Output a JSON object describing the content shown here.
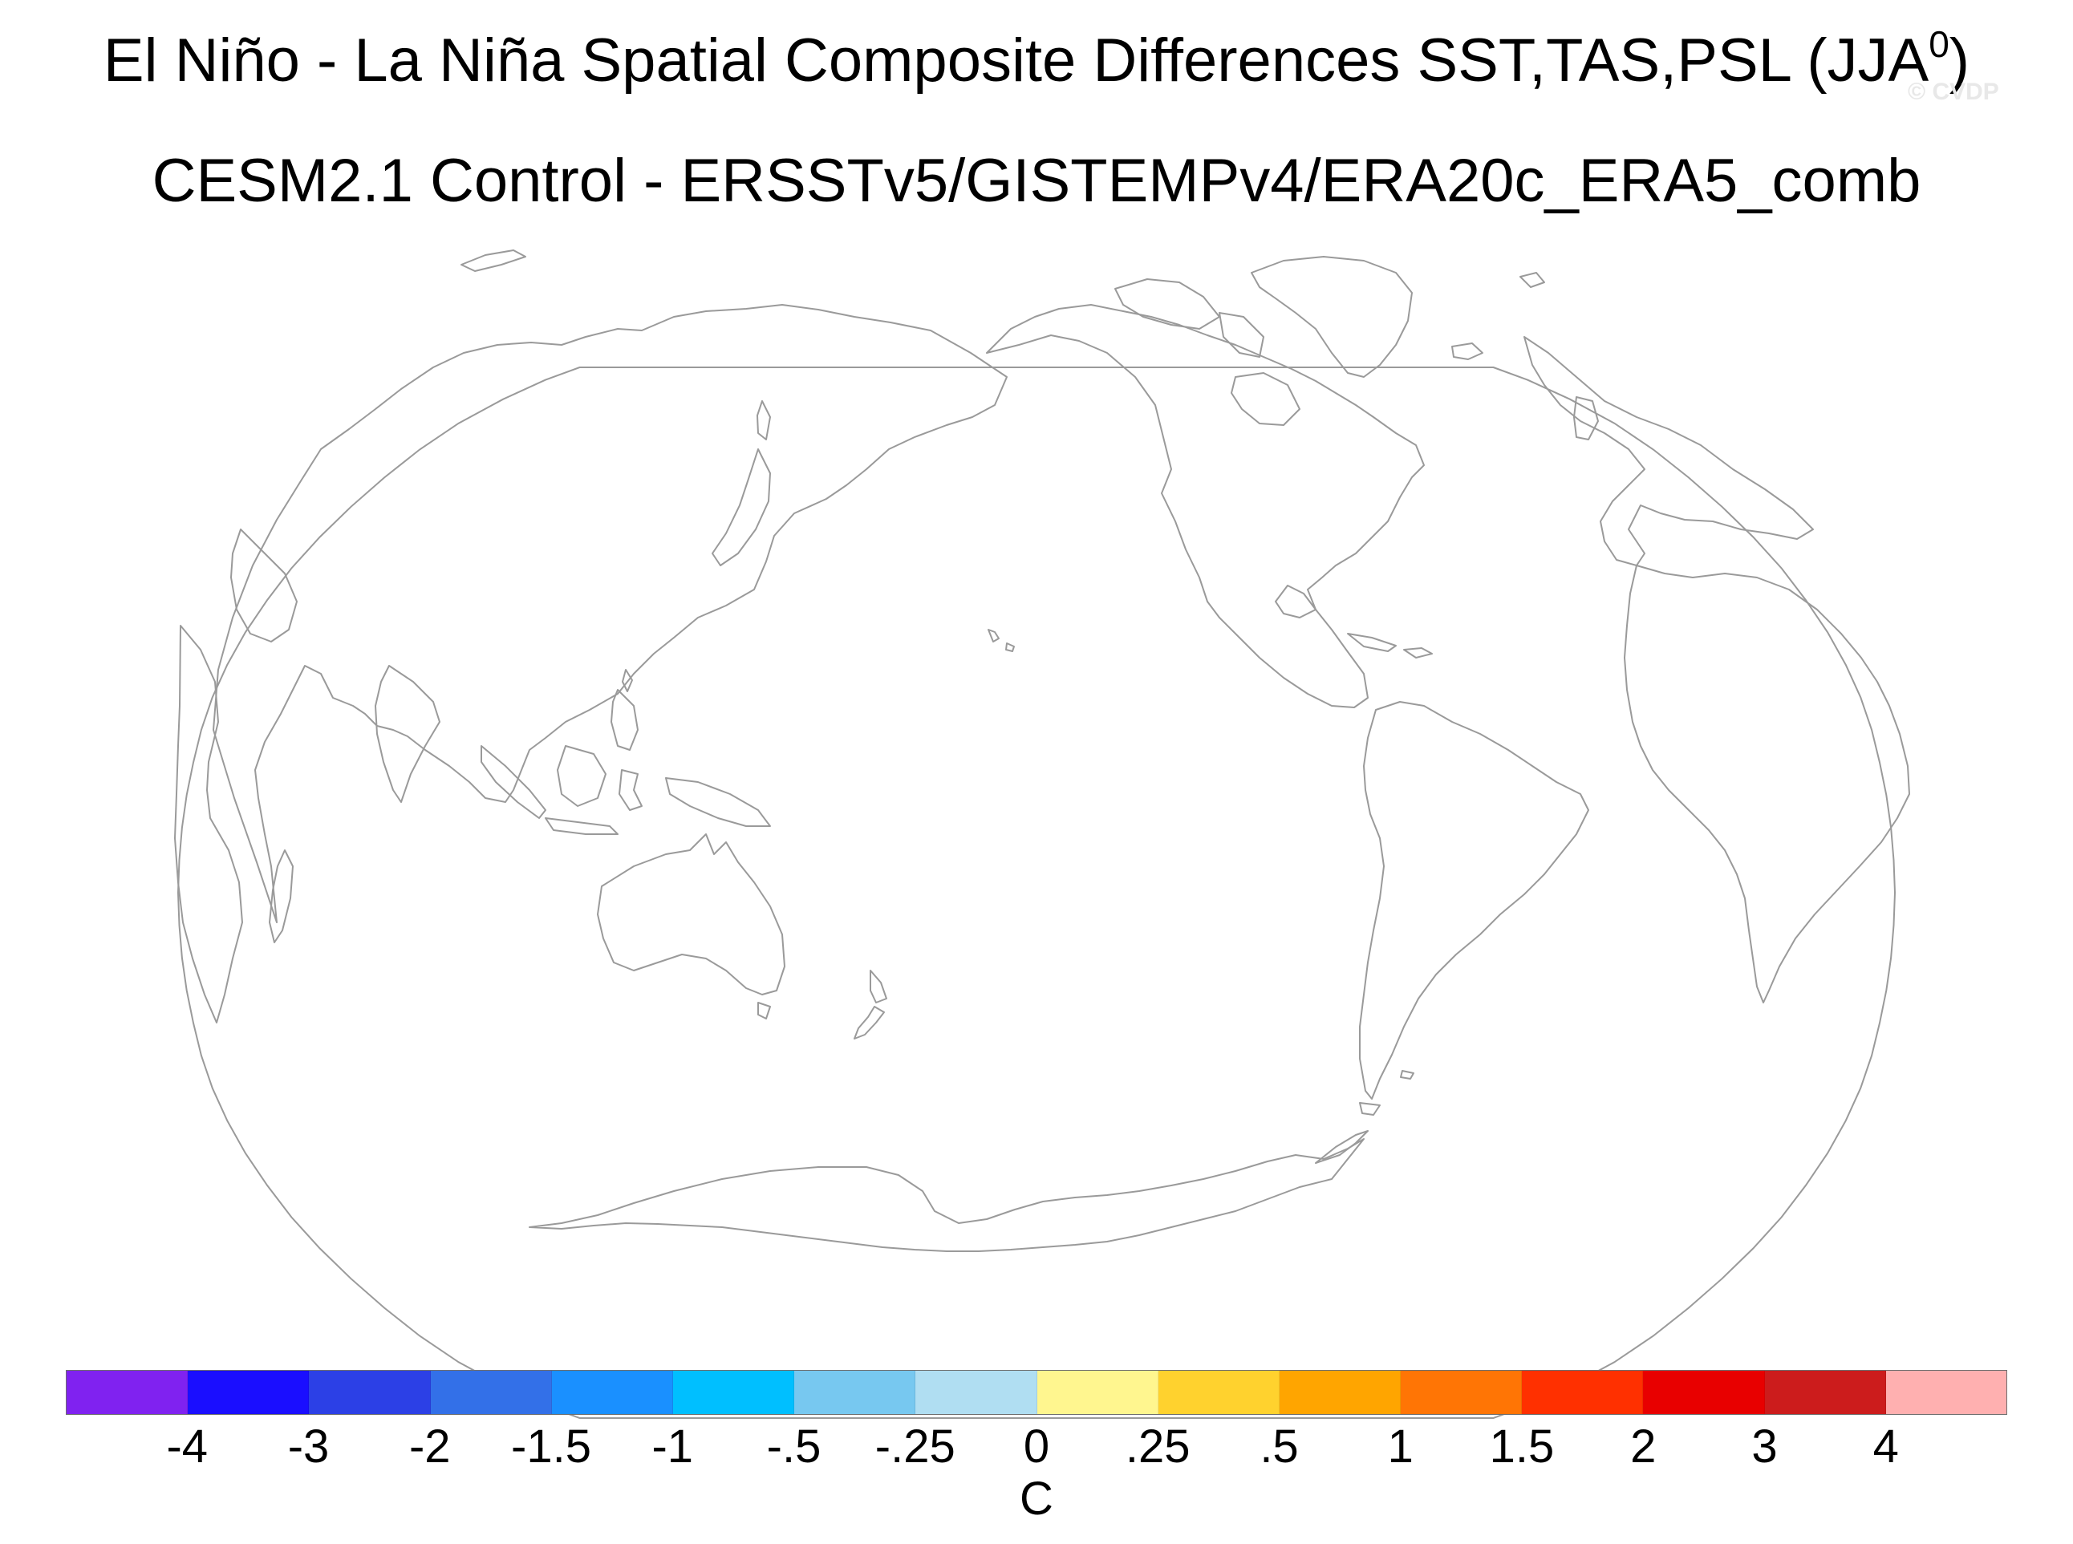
{
  "title": {
    "line1_text": "El Niño - La Niña Spatial Composite Differences SST,TAS,PSL (JJA",
    "line1_sup": "0",
    "line1_close": ")",
    "line2": "CESM2.1 Control - ERSSTv5/GISTEMPv4/ERA20c_ERA5_comb"
  },
  "watermark": "© CVDP",
  "map": {
    "projection": "robinson",
    "central_longitude": 180,
    "coastline_color": "#9a9a9a",
    "border_color": "#9a9a9a",
    "fill_color": "#ffffff"
  },
  "colorbar": {
    "colors": [
      "#8022f0",
      "#1a0eff",
      "#2c40e6",
      "#3370e8",
      "#1a90ff",
      "#00bfff",
      "#77c8f0",
      "#b0def2",
      "#fff68f",
      "#ffd22e",
      "#ffa500",
      "#ff7505",
      "#ff3000",
      "#e80000",
      "#cc1c1c",
      "#ffb0b0"
    ],
    "tick_labels": [
      "-4",
      "-3",
      "-2",
      "-1.5",
      "-1",
      "-.5",
      "-.25",
      "0",
      ".25",
      ".5",
      "1",
      "1.5",
      "2",
      "3",
      "4"
    ],
    "units": "C"
  }
}
